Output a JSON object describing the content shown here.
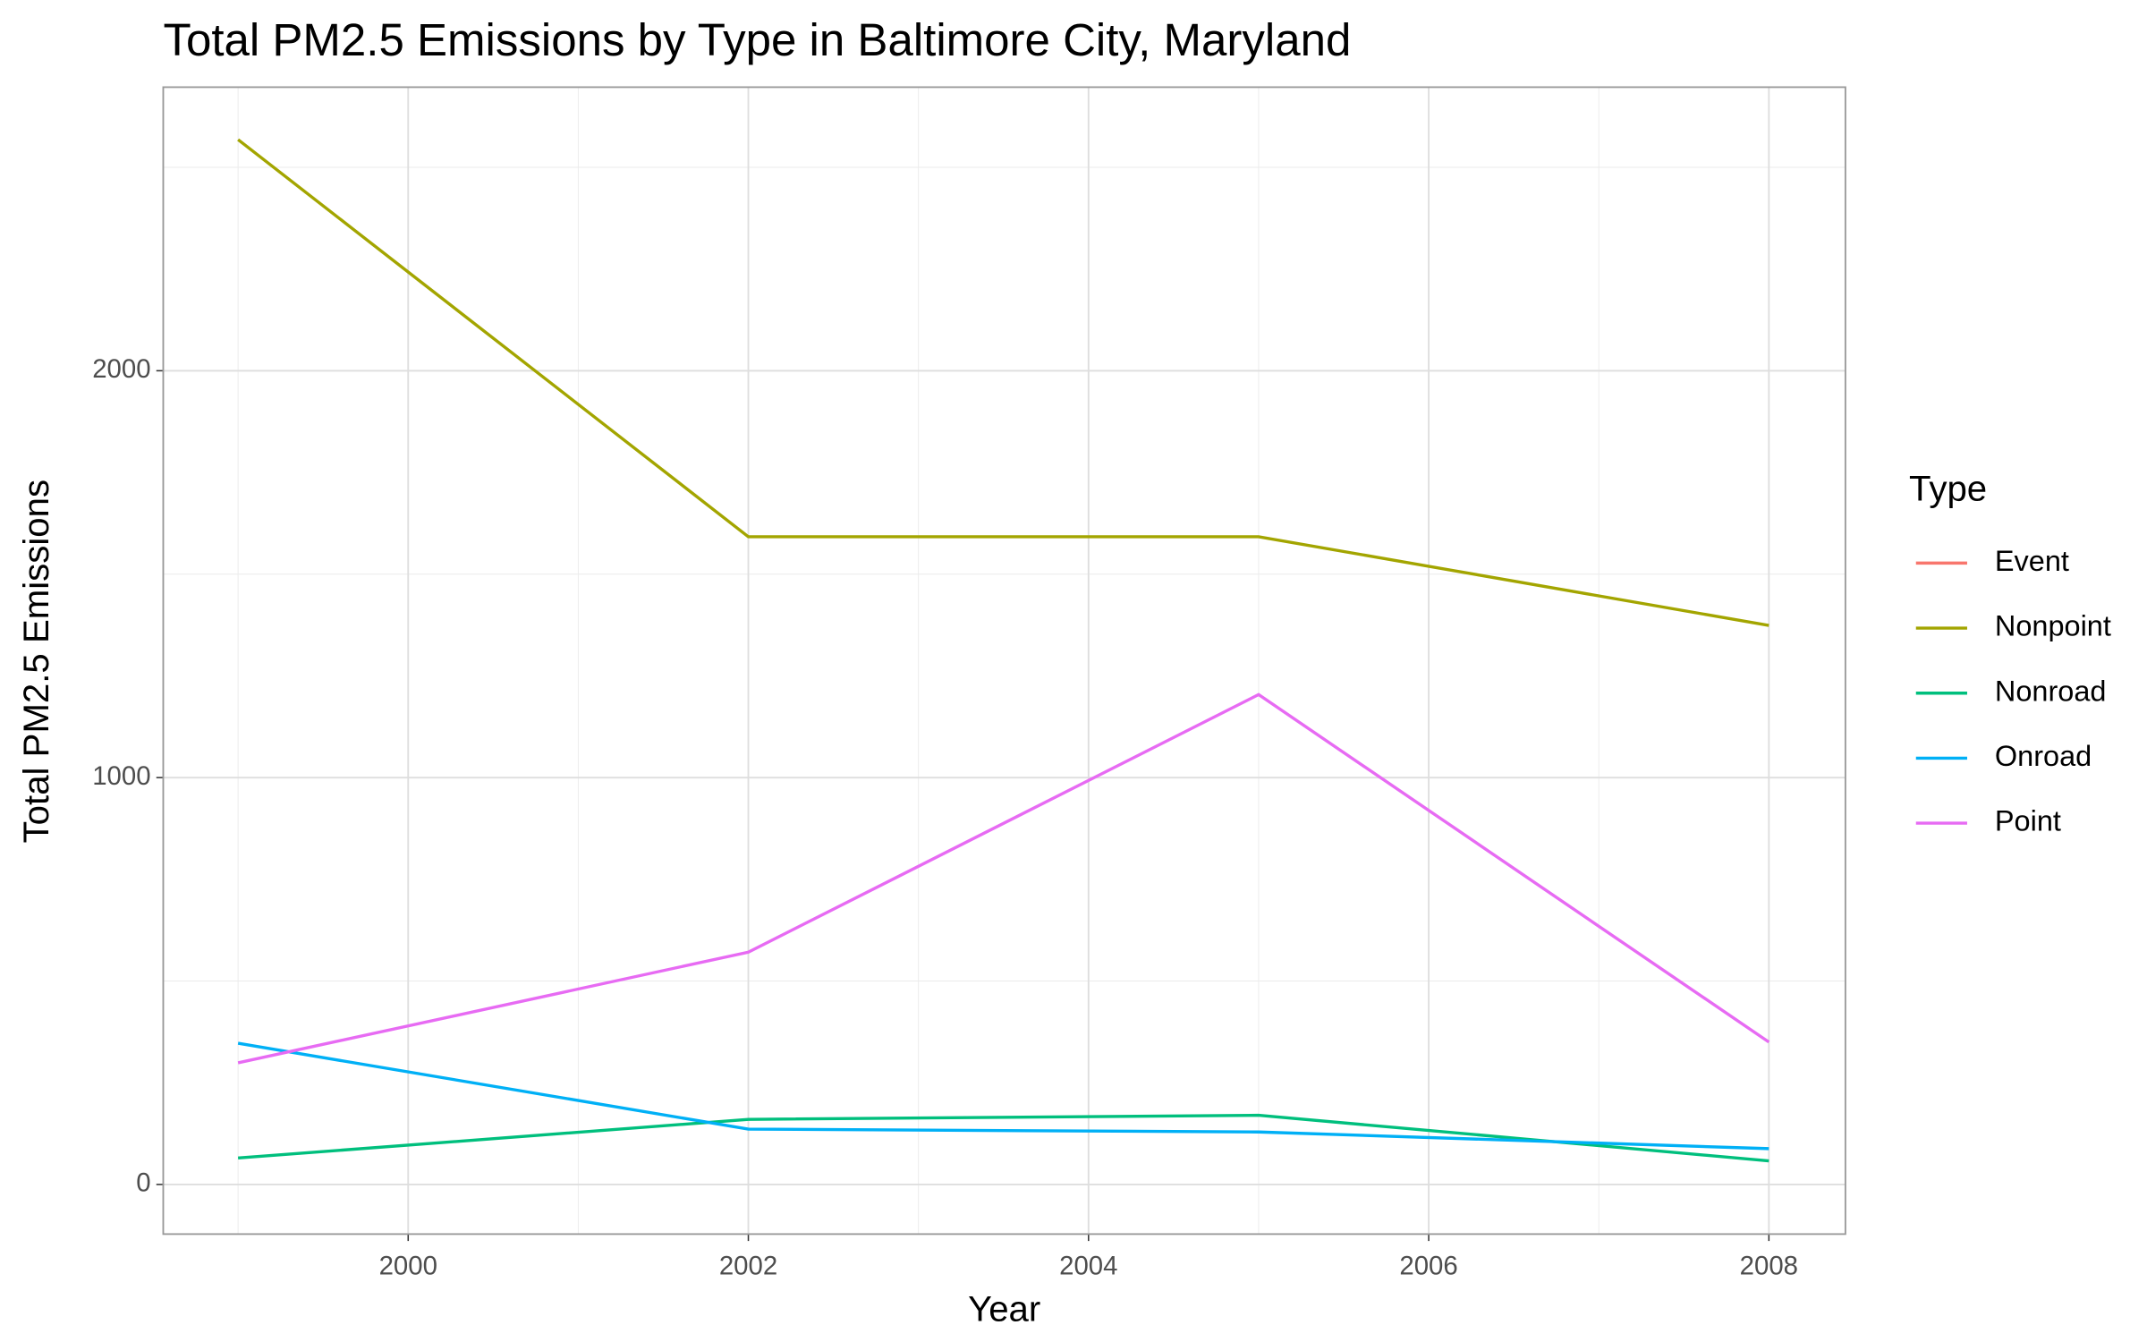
{
  "chart_data": {
    "type": "line",
    "title": "Total PM2.5 Emissions by Type in Baltimore City, Maryland",
    "x_label": "Year",
    "y_label": "Total PM2.5 Emissions",
    "legend_title": "Type",
    "x": [
      1999,
      2002,
      2005,
      2008
    ],
    "series": [
      {
        "name": "Event",
        "color": "#f8766d",
        "values": [
          null,
          null,
          null,
          null
        ]
      },
      {
        "name": "Nonpoint",
        "color": "#a3a500",
        "values": [
          2568,
          1592,
          1592,
          1374
        ]
      },
      {
        "name": "Nonroad",
        "color": "#00bf7d",
        "values": [
          65,
          160,
          170,
          58
        ]
      },
      {
        "name": "Onroad",
        "color": "#00b0f6",
        "values": [
          347,
          136,
          129,
          88
        ]
      },
      {
        "name": "Point",
        "color": "#e76bf3",
        "values": [
          299,
          571,
          1204,
          350
        ]
      }
    ],
    "xlim": [
      1998.56,
      2008.45
    ],
    "xticks": [
      2000,
      2002,
      2004,
      2006,
      2008
    ],
    "ylim": [
      -122,
      2697
    ],
    "yticks": [
      0,
      1000,
      2000
    ],
    "grid": true,
    "legend": "right"
  }
}
